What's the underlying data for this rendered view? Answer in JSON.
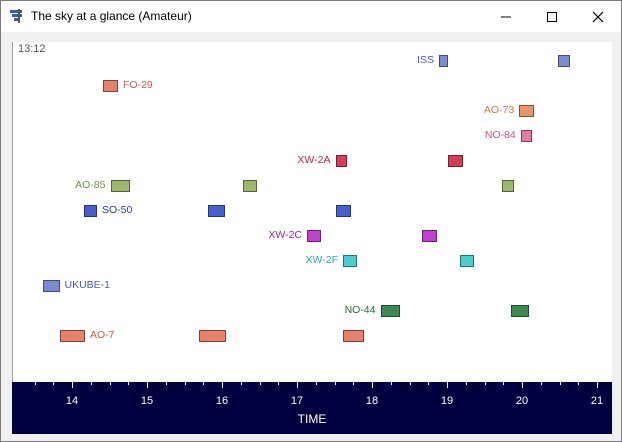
{
  "window": {
    "title": "The sky at a glance (Amateur)"
  },
  "timeline": {
    "clock": "13:12"
  },
  "axis": {
    "title": "TIME",
    "ticks": [
      "14",
      "15",
      "16",
      "17",
      "18",
      "19",
      "20",
      "21"
    ]
  },
  "satellites": [
    {
      "name": "ISS",
      "color": "#7b8ad6",
      "label_color": "#4858b8",
      "label_side": "left",
      "passes": [
        [
          18.88,
          19.0
        ],
        [
          20.46,
          20.62
        ]
      ]
    },
    {
      "name": "FO-29",
      "color": "#e8806c",
      "label_color": "#d05a40",
      "label_side": "right",
      "passes": [
        [
          14.4,
          14.6
        ]
      ]
    },
    {
      "name": "AO-73",
      "color": "#e8956c",
      "label_color": "#d07a4a",
      "label_side": "left",
      "passes": [
        [
          19.95,
          20.15
        ]
      ]
    },
    {
      "name": "NO-84",
      "color": "#e87aa8",
      "label_color": "#d04e88",
      "label_side": "left",
      "passes": [
        [
          19.97,
          20.12
        ]
      ]
    },
    {
      "name": "XW-2A",
      "color": "#d63c58",
      "label_color": "#c02040",
      "label_side": "left",
      "passes": [
        [
          17.5,
          17.65
        ],
        [
          19.0,
          19.2
        ]
      ]
    },
    {
      "name": "AO-85",
      "color": "#9cb86c",
      "label_color": "#6e9640",
      "label_side": "left",
      "passes": [
        [
          14.5,
          14.76
        ],
        [
          16.27,
          16.45
        ],
        [
          19.72,
          19.88
        ]
      ]
    },
    {
      "name": "SO-50",
      "color": "#4660d0",
      "label_color": "#2838a8",
      "label_side": "right",
      "passes": [
        [
          14.14,
          14.32
        ],
        [
          15.8,
          16.02
        ],
        [
          17.5,
          17.7
        ]
      ]
    },
    {
      "name": "XW-2C",
      "color": "#c040d0",
      "label_color": "#9828a8",
      "label_side": "left",
      "passes": [
        [
          17.12,
          17.3
        ],
        [
          18.65,
          18.85
        ]
      ]
    },
    {
      "name": "XW-2F",
      "color": "#48d0d0",
      "label_color": "#28a8b8",
      "label_side": "left",
      "passes": [
        [
          17.6,
          17.78
        ],
        [
          19.16,
          19.34
        ]
      ]
    },
    {
      "name": "UKUBE-1",
      "color": "#7b8ad6",
      "label_color": "#4858b8",
      "label_side": "right",
      "passes": [
        [
          13.6,
          13.82
        ]
      ]
    },
    {
      "name": "NO-44",
      "color": "#3c8a50",
      "label_color": "#286838",
      "label_side": "left",
      "passes": [
        [
          18.1,
          18.36
        ],
        [
          19.84,
          20.08
        ]
      ]
    },
    {
      "name": "AO-7",
      "color": "#e8806c",
      "label_color": "#d05a40",
      "label_side": "right",
      "passes": [
        [
          13.82,
          14.16
        ],
        [
          15.68,
          16.04
        ],
        [
          17.6,
          17.88
        ]
      ]
    }
  ]
}
